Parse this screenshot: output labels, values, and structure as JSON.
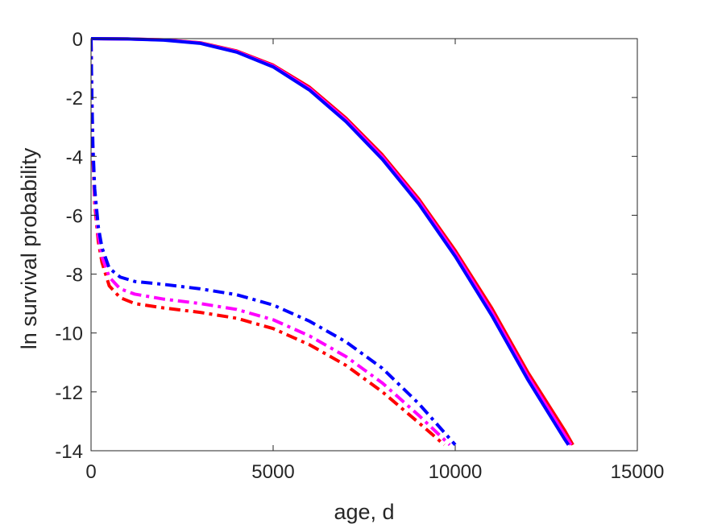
{
  "chart_data": {
    "type": "line",
    "title": "",
    "xlabel": "age, d",
    "ylabel": "ln survival probability",
    "xlim": [
      0,
      15000
    ],
    "ylim": [
      -14,
      0
    ],
    "xticks": [
      0,
      5000,
      10000,
      15000
    ],
    "xtick_labels": [
      "0",
      "5000",
      "10000",
      "15000"
    ],
    "yticks": [
      0,
      -2,
      -4,
      -6,
      -8,
      -10,
      -12,
      -14
    ],
    "ytick_labels": [
      "0",
      "-2",
      "-4",
      "-6",
      "-8",
      "-10",
      "-12",
      "-14"
    ],
    "grid": false,
    "legend": "none",
    "series": [
      {
        "color": "#ff0000",
        "style": "solid",
        "x": [
          0,
          1000,
          2000,
          3000,
          4000,
          5000,
          6000,
          7000,
          8000,
          9000,
          10000,
          11000,
          12000,
          13000,
          13230
        ],
        "y": [
          0,
          -0.01,
          -0.04,
          -0.14,
          -0.42,
          -0.9,
          -1.65,
          -2.7,
          -3.95,
          -5.45,
          -7.2,
          -9.15,
          -11.35,
          -13.3,
          -13.8
        ]
      },
      {
        "color": "#ff00ff",
        "style": "solid",
        "x": [
          0,
          1000,
          2000,
          3000,
          4000,
          5000,
          6000,
          7000,
          8000,
          9000,
          10000,
          11000,
          12000,
          13000,
          13180
        ],
        "y": [
          0,
          -0.01,
          -0.04,
          -0.15,
          -0.44,
          -0.93,
          -1.7,
          -2.76,
          -4.02,
          -5.53,
          -7.3,
          -9.28,
          -11.48,
          -13.45,
          -13.8
        ]
      },
      {
        "color": "#0000ff",
        "style": "solid",
        "x": [
          0,
          1000,
          2000,
          3000,
          4000,
          5000,
          6000,
          7000,
          8000,
          9000,
          10000,
          11000,
          12000,
          13000,
          13110
        ],
        "y": [
          0,
          -0.01,
          -0.05,
          -0.16,
          -0.46,
          -0.96,
          -1.75,
          -2.82,
          -4.1,
          -5.62,
          -7.4,
          -9.4,
          -11.6,
          -13.6,
          -13.8
        ]
      },
      {
        "color": "#ff0000",
        "style": "dashdot",
        "x": [
          0,
          20,
          50,
          100,
          200,
          300,
          500,
          800,
          1200,
          2000,
          3000,
          4000,
          5000,
          6000,
          7000,
          8000,
          9000,
          9700
        ],
        "y": [
          -0.05,
          -2.0,
          -4.0,
          -5.6,
          -6.9,
          -7.6,
          -8.4,
          -8.8,
          -9.0,
          -9.15,
          -9.3,
          -9.5,
          -9.85,
          -10.4,
          -11.1,
          -12.0,
          -13.05,
          -13.8
        ]
      },
      {
        "color": "#ff00ff",
        "style": "dashdot",
        "x": [
          0,
          20,
          50,
          100,
          200,
          300,
          500,
          800,
          1200,
          2000,
          3000,
          4000,
          5000,
          6000,
          7000,
          8000,
          9000,
          9850
        ],
        "y": [
          -0.05,
          -1.9,
          -3.8,
          -5.4,
          -6.7,
          -7.4,
          -8.1,
          -8.5,
          -8.68,
          -8.85,
          -9.0,
          -9.2,
          -9.55,
          -10.1,
          -10.8,
          -11.7,
          -12.8,
          -13.8
        ]
      },
      {
        "color": "#0000ff",
        "style": "dashdot",
        "x": [
          0,
          20,
          50,
          100,
          200,
          300,
          500,
          800,
          1200,
          2000,
          3000,
          4000,
          5000,
          6000,
          7000,
          8000,
          9000,
          10000
        ],
        "y": [
          -0.05,
          -1.8,
          -3.6,
          -5.1,
          -6.4,
          -7.1,
          -7.8,
          -8.1,
          -8.25,
          -8.35,
          -8.5,
          -8.7,
          -9.05,
          -9.6,
          -10.3,
          -11.2,
          -12.4,
          -13.8
        ]
      }
    ]
  }
}
